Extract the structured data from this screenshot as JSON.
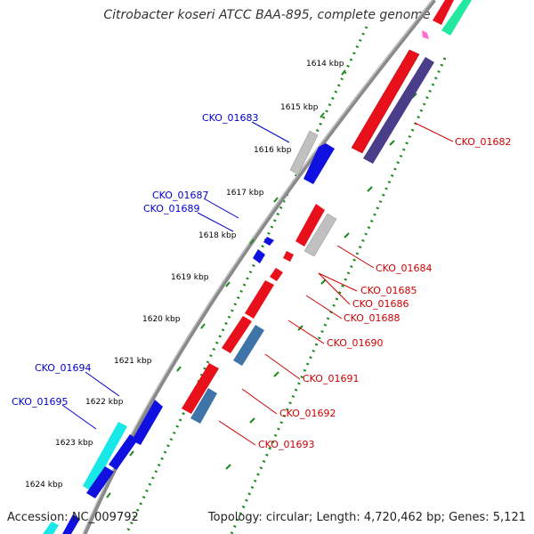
{
  "title": "Citrobacter koseri ATCC BAA-895, complete genome",
  "accession": "Accession: NC_009792",
  "topology": "Topology: circular; Length: 4,720,462 bp; Genes: 5,121",
  "ruler_ticks": [
    "1614 kbp",
    "1615 kbp",
    "1616 kbp",
    "1617 kbp",
    "1618 kbp",
    "1619 kbp",
    "1620 kbp",
    "1621 kbp",
    "1622 kbp",
    "1623 kbp",
    "1624 kbp"
  ],
  "labels_top_strand": [
    "CKO_01683",
    "CKO_01687",
    "CKO_01689",
    "CKO_01694",
    "CKO_01695"
  ],
  "labels_bottom_strand": [
    "CKO_01682",
    "CKO_01684",
    "CKO_01685",
    "CKO_01686",
    "CKO_01688",
    "CKO_01690",
    "CKO_01691",
    "CKO_01692",
    "CKO_01693"
  ],
  "colors": {
    "backbone": "#8a8a8a",
    "dots": "#1a8a1a",
    "label_top": "#0000cc",
    "label_bottom": "#cc0000",
    "gene_red": "#e8101a",
    "gene_blue": "#1010e0",
    "gene_grey": "#c0c0c0",
    "gene_navy": "#4a3e8a",
    "gene_steel": "#3f74a8",
    "gene_cyan": "#19e8e8",
    "gene_green": "#22e8a0",
    "gene_pink": "#ff6ec7"
  }
}
